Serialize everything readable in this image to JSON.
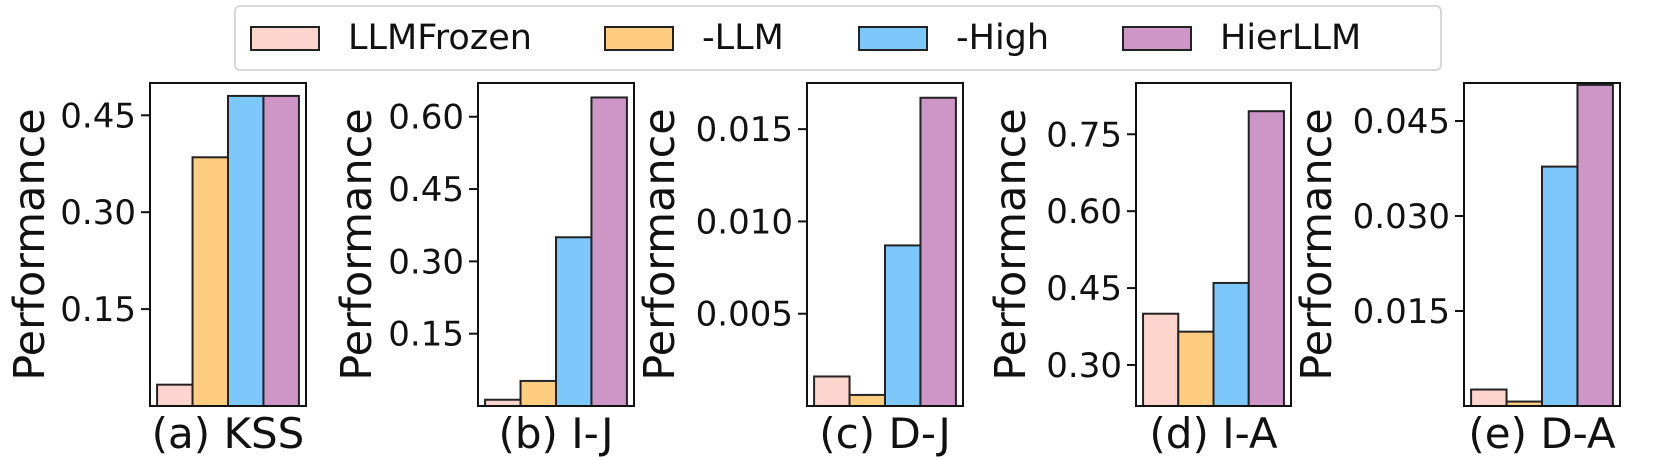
{
  "legend": [
    {
      "label": "LLMFrozen",
      "color": "#FDD5CD"
    },
    {
      "label": "-LLM",
      "color": "#FFCC80"
    },
    {
      "label": "-High",
      "color": "#7CC7FB"
    },
    {
      "label": "HierLLM",
      "color": "#CE96C7"
    }
  ],
  "chart_data": [
    {
      "type": "bar",
      "title": "(a) KSS",
      "ylabel": "Performance",
      "ylim": [
        0,
        0.5
      ],
      "yticks": [
        "0.15",
        "0.30",
        "0.45"
      ],
      "series": [
        {
          "name": "LLMFrozen",
          "values": [
            0.033
          ]
        },
        {
          "name": "-LLM",
          "values": [
            0.385
          ]
        },
        {
          "name": "-High",
          "values": [
            0.48
          ]
        },
        {
          "name": "HierLLM",
          "values": [
            0.48
          ]
        }
      ]
    },
    {
      "type": "bar",
      "title": "(b) I-J",
      "ylabel": "Performance",
      "ylim": [
        0,
        0.67
      ],
      "yticks": [
        "0.15",
        "0.30",
        "0.45",
        "0.60"
      ],
      "series": [
        {
          "name": "LLMFrozen",
          "values": [
            0.013
          ]
        },
        {
          "name": "-LLM",
          "values": [
            0.052
          ]
        },
        {
          "name": "-High",
          "values": [
            0.35
          ]
        },
        {
          "name": "HierLLM",
          "values": [
            0.64
          ]
        }
      ]
    },
    {
      "type": "bar",
      "title": "(c) D-J",
      "ylabel": "Performance",
      "ylim": [
        0,
        0.0175
      ],
      "yticks": [
        "0.005",
        "0.010",
        "0.015"
      ],
      "series": [
        {
          "name": "LLMFrozen",
          "values": [
            0.0016
          ]
        },
        {
          "name": "-LLM",
          "values": [
            0.0006
          ]
        },
        {
          "name": "-High",
          "values": [
            0.0087
          ]
        },
        {
          "name": "HierLLM",
          "values": [
            0.0167
          ]
        }
      ]
    },
    {
      "type": "bar",
      "title": "(d) I-A",
      "ylabel": "Performance",
      "ylim": [
        0.22,
        0.85
      ],
      "yticks": [
        "0.30",
        "0.45",
        "0.60",
        "0.75"
      ],
      "series": [
        {
          "name": "LLMFrozen",
          "values": [
            0.4
          ]
        },
        {
          "name": "-LLM",
          "values": [
            0.365
          ]
        },
        {
          "name": "-High",
          "values": [
            0.46
          ]
        },
        {
          "name": "HierLLM",
          "values": [
            0.795
          ]
        }
      ]
    },
    {
      "type": "bar",
      "title": "(e) D-A",
      "ylabel": "Performance",
      "ylim": [
        0,
        0.051
      ],
      "yticks": [
        "0.015",
        "0.030",
        "0.045"
      ],
      "series": [
        {
          "name": "LLMFrozen",
          "values": [
            0.0026
          ]
        },
        {
          "name": "-LLM",
          "values": [
            0.0007
          ]
        },
        {
          "name": "-High",
          "values": [
            0.0378
          ]
        },
        {
          "name": "HierLLM",
          "values": [
            0.0507
          ]
        }
      ]
    }
  ]
}
